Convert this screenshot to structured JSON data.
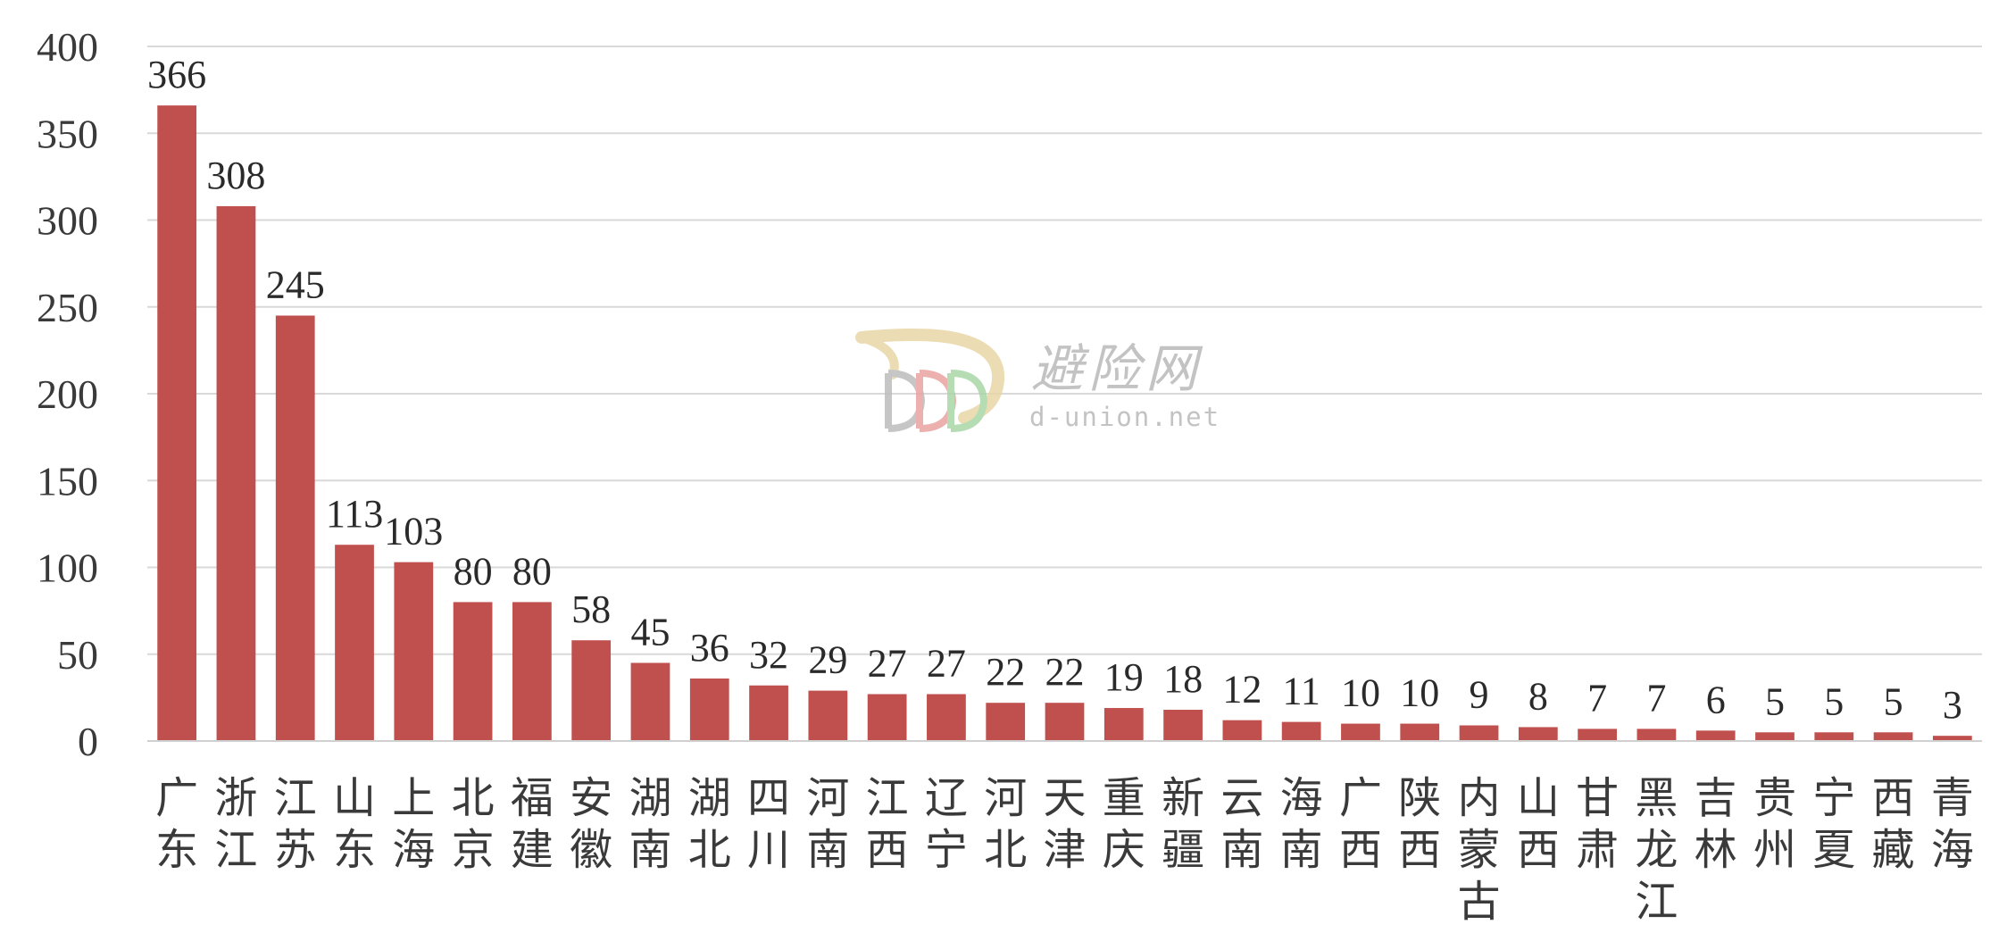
{
  "chart_data": {
    "type": "bar",
    "title": "",
    "xlabel": "",
    "ylabel": "",
    "ylim": [
      0,
      400
    ],
    "yticks": [
      0,
      50,
      100,
      150,
      200,
      250,
      300,
      350,
      400
    ],
    "grid": true,
    "bar_color": "#c0504d",
    "categories": [
      "广东",
      "浙江",
      "江苏",
      "山东",
      "上海",
      "北京",
      "福建",
      "安徽",
      "湖南",
      "湖北",
      "四川",
      "河南",
      "江西",
      "辽宁",
      "河北",
      "天津",
      "重庆",
      "新疆",
      "云南",
      "海南",
      "广西",
      "陕西",
      "内蒙古",
      "山西",
      "甘肃",
      "黑龙江",
      "吉林",
      "贵州",
      "宁夏",
      "西藏",
      "青海"
    ],
    "values": [
      366,
      308,
      245,
      113,
      103,
      80,
      80,
      58,
      45,
      36,
      32,
      29,
      27,
      27,
      22,
      22,
      19,
      18,
      12,
      11,
      10,
      10,
      9,
      8,
      7,
      7,
      6,
      5,
      5,
      5,
      3
    ]
  },
  "watermark": {
    "name": "避险网",
    "url": "d-union.net",
    "logo_icon": "d-union-logo-icon"
  }
}
